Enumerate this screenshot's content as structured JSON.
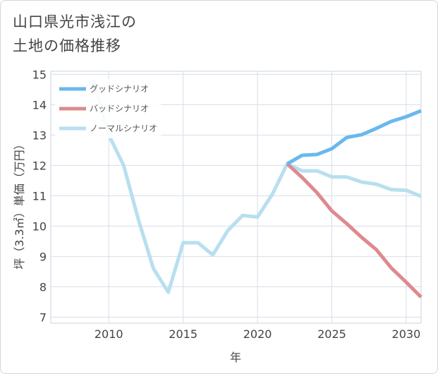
{
  "title_lines": [
    "山口県光市浅江の",
    "土地の価格推移"
  ],
  "chart_data": {
    "type": "line",
    "xlabel": "年",
    "ylabel": "坪（3.3㎡）単価（万円）",
    "xlim": [
      2006.1,
      2031
    ],
    "ylim": [
      6.8,
      15.1
    ],
    "xticks": [
      2010,
      2015,
      2020,
      2025,
      2030
    ],
    "yticks": [
      7,
      8,
      9,
      10,
      11,
      12,
      13,
      14,
      15
    ],
    "grid": true,
    "legend_position": "top-left",
    "series": [
      {
        "name": "グッドシナリオ",
        "color": "#6ab8ee",
        "x": [
          2022,
          2023,
          2024,
          2025,
          2026,
          2027,
          2028,
          2029,
          2030,
          2031
        ],
        "y": [
          12.05,
          12.33,
          12.36,
          12.55,
          12.92,
          13.01,
          13.22,
          13.45,
          13.6,
          13.8
        ]
      },
      {
        "name": "バッドシナリオ",
        "color": "#dd8a8e",
        "x": [
          2022,
          2023,
          2024,
          2025,
          2026,
          2027,
          2028,
          2029,
          2030,
          2031
        ],
        "y": [
          12.05,
          11.6,
          11.1,
          10.5,
          10.08,
          9.63,
          9.22,
          8.62,
          8.15,
          7.66
        ]
      },
      {
        "name": "ノーマルシナリオ",
        "color": "#b8dfef",
        "x": [
          2008,
          2009,
          2010,
          2011,
          2012,
          2013,
          2014,
          2015,
          2016,
          2017,
          2018,
          2019,
          2020,
          2021,
          2022,
          2023,
          2024,
          2025,
          2026,
          2027,
          2028,
          2029,
          2030,
          2031
        ],
        "y": [
          14.5,
          14.75,
          13.0,
          12.0,
          10.2,
          8.6,
          7.82,
          9.45,
          9.45,
          9.05,
          9.85,
          10.35,
          10.3,
          11.05,
          12.05,
          11.82,
          11.82,
          11.62,
          11.62,
          11.45,
          11.38,
          11.2,
          11.18,
          10.98
        ]
      }
    ]
  }
}
